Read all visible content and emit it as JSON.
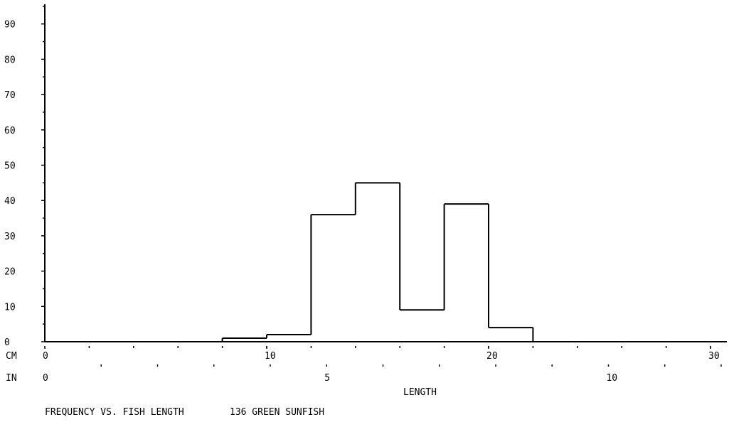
{
  "chart_data": {
    "type": "bar",
    "title": "FREQUENCY VS. FISH LENGTH",
    "subtitle": "136 GREEN SUNFISH",
    "xlabel": "LENGTH",
    "ylabel": "",
    "ylim": [
      0,
      95
    ],
    "y_ticks": [
      0,
      10,
      20,
      30,
      40,
      50,
      60,
      70,
      80,
      90
    ],
    "x_axis_cm": {
      "label": "CM",
      "range": [
        0,
        30.5
      ],
      "ticks": [
        0,
        10,
        20,
        30
      ]
    },
    "x_axis_in": {
      "label": "IN",
      "ticks": [
        0,
        5,
        10
      ]
    },
    "bin_width_cm": 2,
    "bins": [
      {
        "start": 8,
        "end": 10,
        "value": 1
      },
      {
        "start": 10,
        "end": 12,
        "value": 2
      },
      {
        "start": 12,
        "end": 14,
        "value": 36
      },
      {
        "start": 14,
        "end": 16,
        "value": 45
      },
      {
        "start": 16,
        "end": 18,
        "value": 9
      },
      {
        "start": 18,
        "end": 20,
        "value": 39
      },
      {
        "start": 20,
        "end": 22,
        "value": 4
      }
    ]
  }
}
